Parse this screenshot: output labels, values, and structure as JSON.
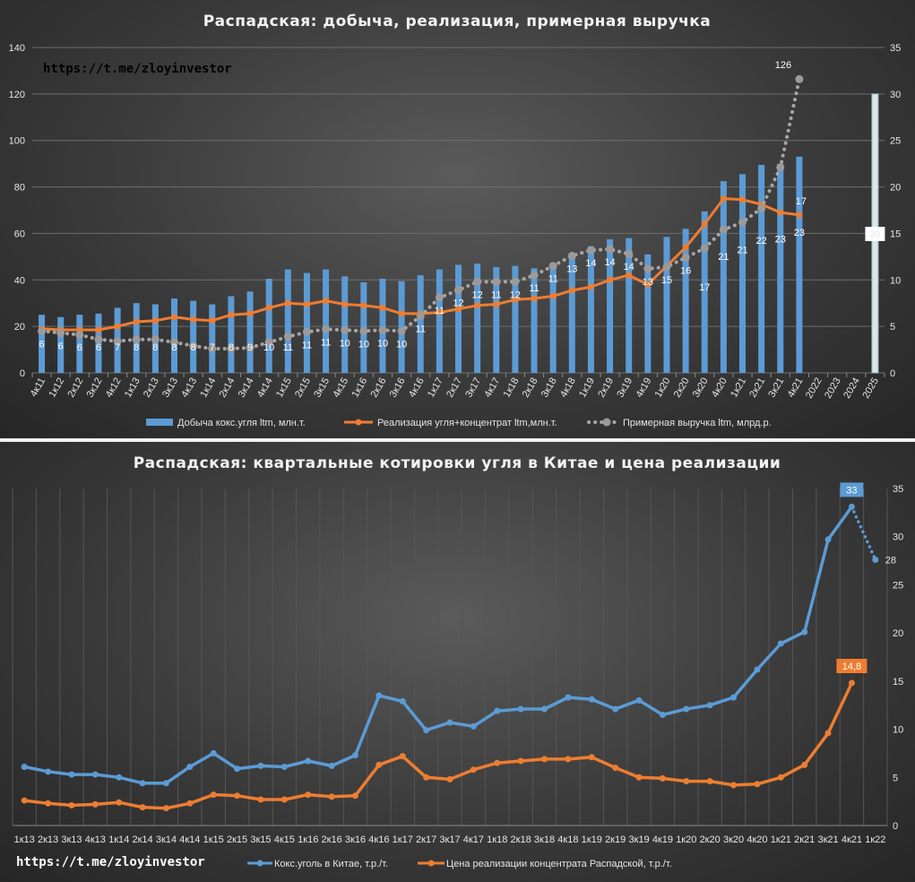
{
  "panel1": {
    "url": "https://t.me/zloyinvestor",
    "chart_data": {
      "type": "bar",
      "title": "Распадская:  добыча,  реализация,  примерная  выручка",
      "categories": [
        "4к11",
        "1к12",
        "2к12",
        "3к12",
        "4к12",
        "1к13",
        "2к13",
        "3к13",
        "4к13",
        "1к14",
        "2к14",
        "3к14",
        "4к14",
        "1к15",
        "2к15",
        "3к15",
        "4к15",
        "1к16",
        "2к16",
        "3к16",
        "4к16",
        "1к17",
        "2к17",
        "3к17",
        "4к17",
        "1к18",
        "2к18",
        "3к18",
        "4к18",
        "1к19",
        "2к19",
        "3к19",
        "4к19",
        "1к20",
        "2к20",
        "3к20",
        "4к20",
        "1к21",
        "2к21",
        "3к21",
        "4к21",
        "2022",
        "2023",
        "2024",
        "2025"
      ],
      "ylim": [
        0,
        140
      ],
      "y2lim": [
        0,
        35
      ],
      "y_ticks": [
        0,
        20,
        40,
        60,
        80,
        100,
        120,
        140
      ],
      "y2_ticks": [
        0,
        5,
        10,
        15,
        20,
        25,
        30,
        35
      ],
      "series": [
        {
          "name": "Добыча кокс.угля ltm, млн.т.",
          "axis": "left",
          "kind": "bar",
          "color": "#5b9bd5",
          "values": [
            25,
            24,
            25,
            25.5,
            28,
            30,
            29.5,
            32,
            31,
            29.5,
            33,
            35,
            40.5,
            44.5,
            43,
            44.5,
            41.5,
            39,
            40.5,
            39.5,
            42,
            44.5,
            46.5,
            47,
            45.5,
            46,
            45,
            47,
            51.5,
            54.5,
            57.5,
            58,
            51,
            58.5,
            62,
            69.5,
            82.5,
            85.5,
            89.5,
            90,
            93,
            null,
            null,
            null,
            120
          ]
        },
        {
          "name": "Реализация угля+концентрат ltm,млн.т.",
          "axis": "left",
          "kind": "line",
          "color": "#ed7d31",
          "values": [
            19,
            18.5,
            18.5,
            18.5,
            20,
            22,
            22.5,
            24,
            23,
            22.5,
            25,
            25.5,
            28,
            30,
            29.5,
            31,
            29.5,
            29,
            28,
            25.5,
            25.5,
            26,
            27.5,
            29,
            29.5,
            31.5,
            32,
            33,
            35.5,
            37,
            40,
            42,
            38,
            46,
            54,
            64,
            75,
            74.5,
            72.5,
            69,
            68,
            null,
            null,
            null,
            null
          ],
          "labels": [
            null,
            null,
            null,
            null,
            null,
            null,
            null,
            null,
            null,
            null,
            null,
            null,
            null,
            null,
            null,
            null,
            null,
            null,
            null,
            null,
            null,
            null,
            null,
            null,
            null,
            null,
            null,
            null,
            null,
            null,
            null,
            null,
            null,
            null,
            null,
            null,
            null,
            null,
            null,
            null,
            "17",
            null,
            null,
            null,
            null
          ]
        },
        {
          "name": "Примерная выручка ltm, млрд.р.",
          "axis": "right",
          "kind": "dotted",
          "color": "#a6a6a6",
          "values": [
            4.5,
            4.3,
            4.1,
            3.6,
            3.4,
            3.6,
            3.6,
            3.3,
            2.9,
            2.6,
            2.6,
            2.7,
            3.3,
            3.9,
            4.4,
            4.7,
            4.6,
            4.5,
            4.6,
            4.5,
            6.1,
            8.1,
            8.9,
            9.8,
            9.8,
            9.8,
            10.5,
            11.5,
            12.6,
            13.2,
            13.3,
            12.8,
            11.2,
            11.4,
            12.4,
            13.4,
            15.4,
            16.2,
            17.7,
            22.1,
            31.6,
            null,
            null,
            null,
            null
          ],
          "labels": [
            "6",
            "6",
            "6",
            "6",
            "7",
            "8",
            "8",
            "8",
            "8",
            "7",
            "8",
            "9",
            "10",
            "11",
            "11",
            "11",
            "10",
            "10",
            "10",
            "10",
            "11",
            "11",
            "12",
            "12",
            "11",
            "12",
            "11",
            "11",
            "13",
            "14",
            "14",
            "14",
            "13",
            "15",
            "16",
            "17",
            "21",
            "21",
            "22",
            "23",
            "23",
            null,
            null,
            null,
            "30"
          ],
          "top_label": "126"
        }
      ],
      "legend": "bottom"
    }
  },
  "panel2": {
    "url": "https://t.me/zloyinvestor",
    "chart_data": {
      "type": "line",
      "title": "Распадская:  квартальные  котировки  угля  в  Китае  и  цена  реализации",
      "categories": [
        "1к13",
        "2к13",
        "3к13",
        "4к13",
        "1к14",
        "2к14",
        "3к14",
        "4к14",
        "1к15",
        "2к15",
        "3к15",
        "4к15",
        "1к16",
        "2к16",
        "3к16",
        "4к16",
        "1к17",
        "2к17",
        "3к17",
        "4к17",
        "1к18",
        "2к18",
        "3к18",
        "4к18",
        "1к19",
        "2к19",
        "3к19",
        "4к19",
        "1к20",
        "2к20",
        "3к20",
        "4к20",
        "1к21",
        "2к21",
        "3к21",
        "4к21",
        "1к22"
      ],
      "ylim": [
        0,
        35
      ],
      "y_ticks": [
        0,
        5,
        10,
        15,
        20,
        25,
        30,
        35
      ],
      "series": [
        {
          "name": "Кокс.уголь в Китае, т.р./т.",
          "color": "#5b9bd5",
          "values": [
            6.1,
            5.6,
            5.3,
            5.3,
            5.0,
            4.4,
            4.4,
            6.1,
            7.5,
            5.9,
            6.2,
            6.1,
            6.7,
            6.2,
            7.3,
            13.5,
            12.9,
            9.9,
            10.7,
            10.3,
            11.9,
            12.1,
            12.1,
            13.3,
            13.1,
            12.1,
            13.0,
            11.5,
            12.1,
            12.5,
            13.3,
            16.2,
            18.9,
            20.1,
            29.7,
            33.1,
            27.6
          ],
          "end_label": "33",
          "forecast_label": "28"
        },
        {
          "name": "Цена реализации концентрата Распадской, т.р./т.",
          "color": "#ed7d31",
          "values": [
            2.6,
            2.3,
            2.1,
            2.2,
            2.4,
            1.9,
            1.8,
            2.3,
            3.2,
            3.1,
            2.7,
            2.7,
            3.2,
            3.0,
            3.1,
            6.3,
            7.2,
            5.0,
            4.8,
            5.8,
            6.5,
            6.7,
            6.9,
            6.9,
            7.1,
            6.0,
            5.0,
            4.9,
            4.6,
            4.6,
            4.2,
            4.3,
            5.0,
            6.3,
            9.6,
            14.8,
            null
          ],
          "end_label": "14,8"
        }
      ],
      "legend": "bottom"
    }
  }
}
